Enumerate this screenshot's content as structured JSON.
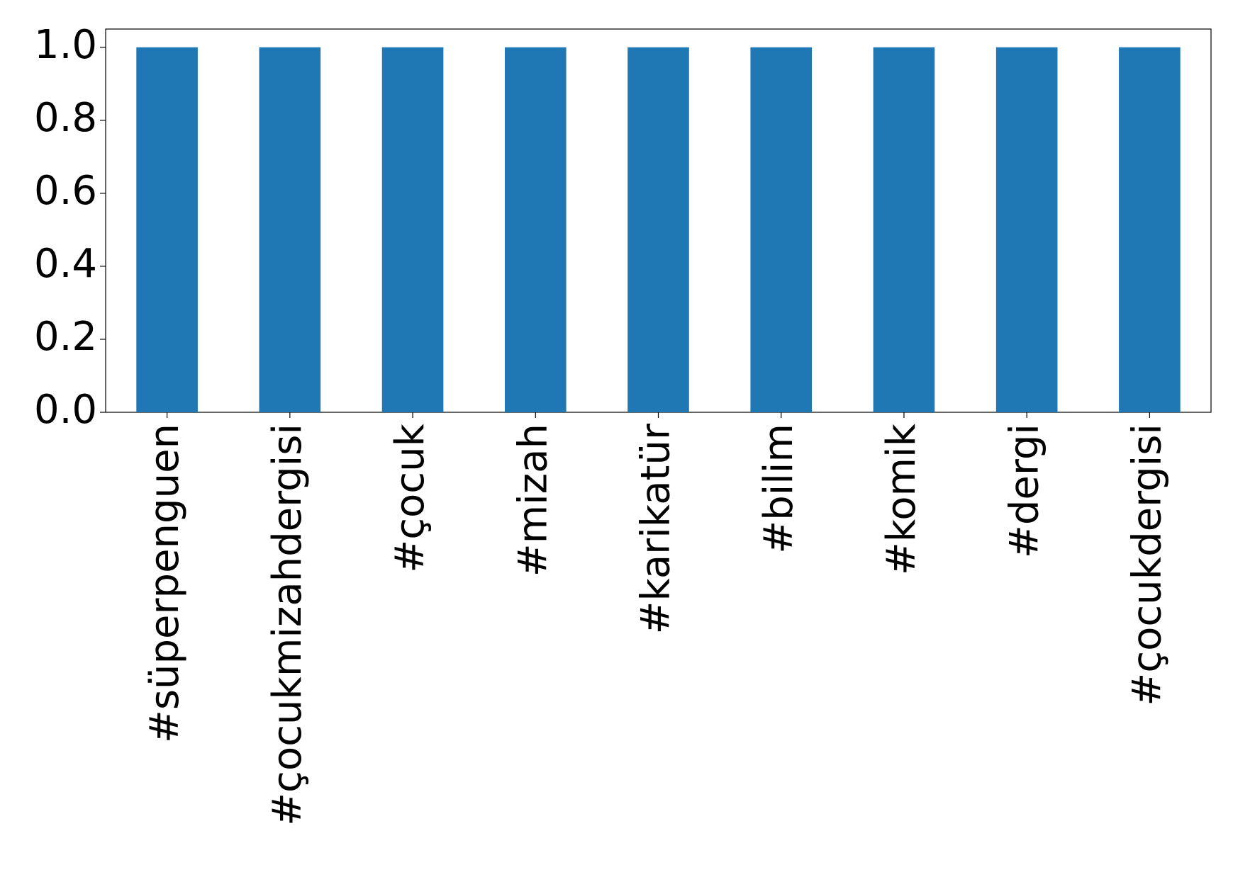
{
  "chart_data": {
    "type": "bar",
    "categories": [
      "#süperpenguen",
      "#çocukmizahdergisi",
      "#çocuk",
      "#mizah",
      "#karikatür",
      "#bilim",
      "#komik",
      "#dergi",
      "#çocukdergisi"
    ],
    "values": [
      1,
      1,
      1,
      1,
      1,
      1,
      1,
      1,
      1
    ],
    "color": "#1f77b4",
    "ylim": [
      0,
      1.05
    ],
    "yticks": [
      {
        "value": 0,
        "label": "0.0"
      },
      {
        "value": 0.2,
        "label": "0.2"
      },
      {
        "value": 0.4,
        "label": "0.4"
      },
      {
        "value": 0.6,
        "label": "0.6"
      },
      {
        "value": 0.8,
        "label": "0.8"
      },
      {
        "value": 1,
        "label": "1.0"
      }
    ],
    "grid": false
  }
}
